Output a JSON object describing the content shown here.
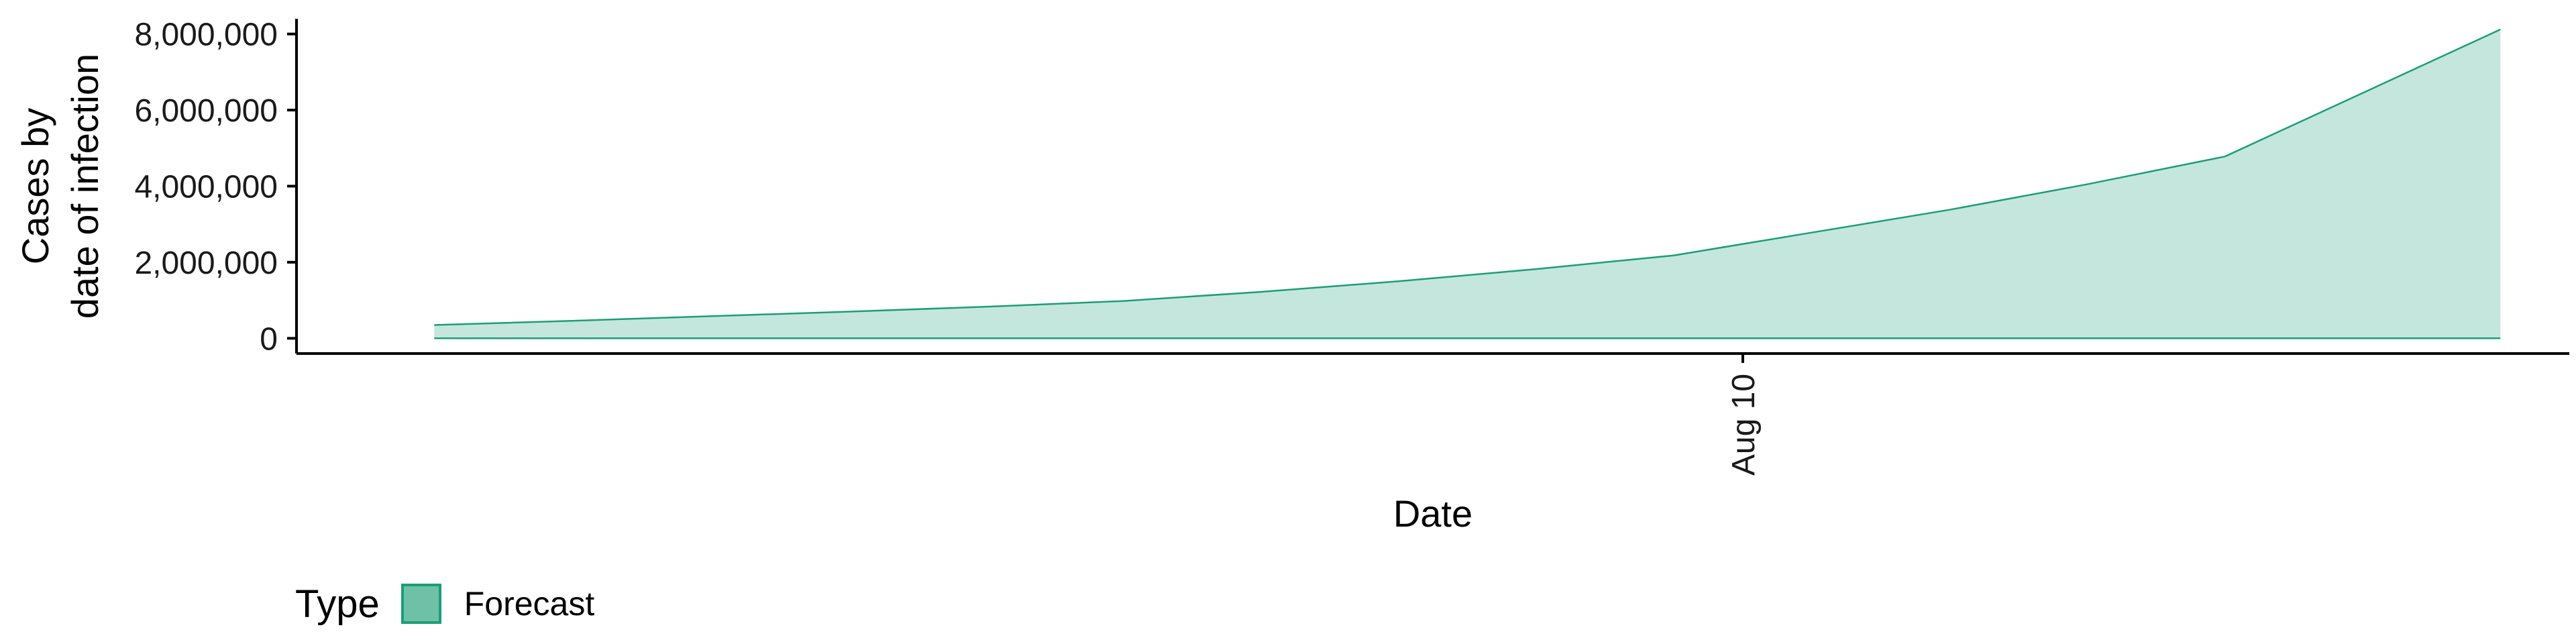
{
  "chart_data": {
    "type": "area",
    "xlabel": "Date",
    "ylabel_lines": [
      "Cases by",
      "date of infection"
    ],
    "x_ticks": [
      {
        "x": "2020-08-10",
        "label": "Aug 10"
      }
    ],
    "y_ticks": [
      {
        "value": 0,
        "label": "0"
      },
      {
        "value": 2000000,
        "label": "2,000,000"
      },
      {
        "value": 4000000,
        "label": "4,000,000"
      },
      {
        "value": 6000000,
        "label": "6,000,000"
      },
      {
        "value": 8000000,
        "label": "8,000,000"
      }
    ],
    "xlim": [
      "2020-07-20",
      "2020-08-22"
    ],
    "ylim": [
      -400000,
      8400000
    ],
    "series": [
      {
        "name": "Forecast",
        "x": [
          "2020-07-22",
          "2020-07-24",
          "2020-07-26",
          "2020-07-28",
          "2020-07-30",
          "2020-08-01",
          "2020-08-03",
          "2020-08-05",
          "2020-08-07",
          "2020-08-09",
          "2020-08-11",
          "2020-08-13",
          "2020-08-15",
          "2020-08-17",
          "2020-08-19",
          "2020-08-21"
        ],
        "lower": [
          0,
          0,
          0,
          0,
          0,
          0,
          0,
          0,
          0,
          0,
          0,
          0,
          0,
          0,
          0,
          0
        ],
        "upper": [
          350000,
          460000,
          580000,
          700000,
          830000,
          980000,
          1220000,
          1500000,
          1820000,
          2180000,
          2780000,
          3380000,
          4050000,
          4780000,
          6450000,
          8120000
        ]
      }
    ],
    "legend": {
      "title": "Type",
      "position": "bottom-left"
    },
    "grid": false
  },
  "colors": {
    "forecast_fill": "#c5e6dc",
    "forecast_line": "#1b9e77",
    "legend_key_fill": "#6ec1a6",
    "axis": "#000000"
  }
}
